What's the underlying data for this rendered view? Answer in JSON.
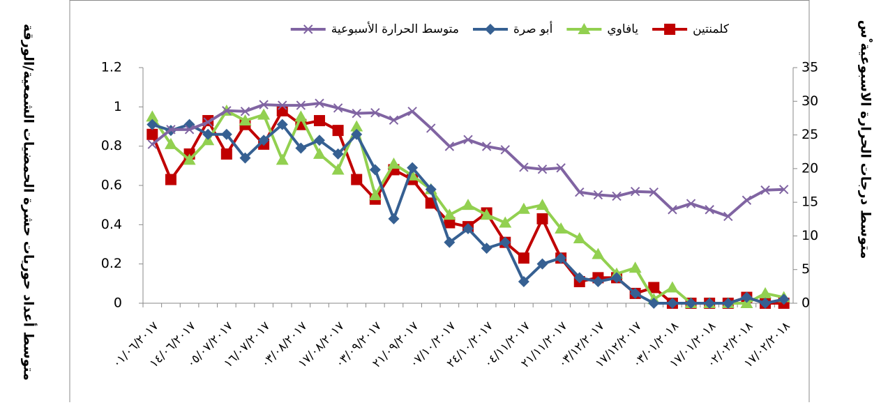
{
  "chart_data": {
    "type": "line",
    "y_label": "متوسط أعداد حوريات حشرة الحمضيات الشمعية/الورقة",
    "y2_label": "متوسط درجات الحرارة الاسبوعية ْس",
    "categories": [
      "٠١/٠٦/٢٠١٧",
      null,
      "١٤/٠٦/٢٠١٧",
      null,
      "٠٥/٠٧/٢٠١٧",
      null,
      "١٦/٠٧/٢٠١٧",
      null,
      "٠٣/٠٨/٢٠١٧",
      null,
      "١٧/٠٨/٢٠١٧",
      null,
      "٠٣/٠٩/٢٠١٧",
      null,
      "٢١/٠٩/٢٠١٧",
      null,
      "٠٧/١٠/٢٠١٧",
      null,
      "٢٤/١٠/٢٠١٧",
      null,
      "٠٤/١١/٢٠١٧",
      null,
      "٢١/١١/٢٠١٧",
      null,
      "٠٣/١٢/٢٠١٧",
      null,
      "١٧/١٢/٢٠١٧",
      null,
      "٠٣/٠١/٢٠١٨",
      null,
      "١٧/٠١/٢٠١٨",
      null,
      "٠٢/٠٢/٢٠١٨",
      null,
      "١٧/٠٢/٢٠١٨"
    ],
    "series": [
      {
        "name": "كلمنتين",
        "color": "#c00000",
        "marker": "square",
        "values": [
          0.86,
          0.63,
          0.76,
          0.93,
          0.76,
          0.91,
          0.81,
          0.98,
          0.91,
          0.93,
          0.88,
          0.63,
          0.53,
          0.68,
          0.63,
          0.51,
          0.41,
          0.39,
          0.46,
          0.31,
          0.23,
          0.43,
          0.23,
          0.11,
          0.13,
          0.13,
          0.05,
          0.08,
          0,
          0,
          0,
          0,
          0.03,
          0,
          0
        ]
      },
      {
        "name": "يافاوي",
        "color": "#92d050",
        "marker": "triangle",
        "values": [
          0.95,
          0.81,
          0.73,
          0.83,
          0.98,
          0.93,
          0.96,
          0.73,
          0.95,
          0.76,
          0.68,
          0.9,
          0.55,
          0.71,
          0.65,
          0.58,
          0.45,
          0.5,
          0.45,
          0.41,
          0.48,
          0.5,
          0.38,
          0.33,
          0.25,
          0.15,
          0.18,
          0.02,
          0.08,
          0,
          0,
          0,
          0,
          0.05,
          0.03
        ]
      },
      {
        "name": "أبو صرة",
        "color": "#366092",
        "marker": "diamond",
        "values": [
          0.91,
          0.88,
          0.91,
          0.86,
          0.86,
          0.74,
          0.83,
          0.91,
          0.79,
          0.83,
          0.76,
          0.86,
          0.68,
          0.43,
          0.69,
          0.58,
          0.31,
          0.38,
          0.28,
          0.31,
          0.11,
          0.2,
          0.23,
          0.13,
          0.11,
          0.13,
          0.05,
          0,
          0,
          0,
          0,
          0,
          0.03,
          0,
          0.02
        ]
      },
      {
        "name": "متوسط الحرارة الأسبوعية",
        "color": "#8064a2",
        "marker": "x",
        "axis": "y2",
        "values": [
          23.6,
          25.8,
          25.8,
          26.9,
          28.6,
          28.5,
          29.5,
          29.4,
          29.4,
          29.7,
          29,
          28.2,
          28.3,
          27.2,
          28.5,
          26,
          23.3,
          24.3,
          23.3,
          22.8,
          20.2,
          19.9,
          20.1,
          16.5,
          16.1,
          15.9,
          16.6,
          16.5,
          13.9,
          14.8,
          13.9,
          12.9,
          15.3,
          16.8,
          16.9
        ]
      }
    ],
    "ylim": [
      0,
      1.2
    ],
    "yticks": [
      0,
      0.2,
      0.4,
      0.6,
      0.8,
      1,
      1.2
    ],
    "y2lim": [
      0,
      35
    ],
    "y2ticks": [
      0,
      5,
      10,
      15,
      20,
      25,
      30,
      35
    ],
    "legend": "top"
  }
}
